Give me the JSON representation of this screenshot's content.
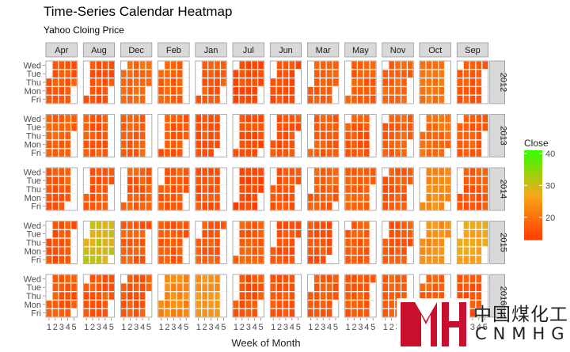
{
  "header": {
    "title": "Time-Series Calendar Heatmap",
    "subtitle": "Yahoo Cloing Price"
  },
  "watermark": {
    "cn": "中国煤化工",
    "en": "CNMHG"
  },
  "colors": {
    "low": "#ff3c00",
    "mid": "#f7a81b",
    "high": "#33ff00",
    "strip_fill": "#d9d9d9",
    "grid": "#e6e6e6",
    "panel_border": "#7f7f7f"
  },
  "chart_data": {
    "type": "heatmap",
    "title": "Time-Series Calendar Heatmap",
    "subtitle": "Yahoo Cloing Price",
    "xlabel": "Week of Month",
    "ylabel": "",
    "months": [
      "Apr",
      "Aug",
      "Dec",
      "Feb",
      "Jan",
      "Jul",
      "Jun",
      "Mar",
      "May",
      "Nov",
      "Oct",
      "Sep"
    ],
    "years": [
      "2012",
      "2013",
      "2014",
      "2015",
      "2016"
    ],
    "week_ticks": [
      "1",
      "2",
      "3",
      "4",
      "5"
    ],
    "weekday_ticks": [
      "Wed",
      "Tue",
      "Thu",
      "Mon",
      "Fri"
    ],
    "legend": {
      "title": "Close",
      "ticks": [
        20,
        30,
        40
      ],
      "range": [
        13,
        41
      ],
      "position": "right"
    },
    "grid": true,
    "base_close_by_year_month": {
      "2012": [
        16.5,
        15.8,
        18.8,
        17.5,
        16.2,
        15.2,
        15.5,
        16.8,
        17.2,
        18.0,
        20.5,
        16.6
      ],
      "2013": [
        17.5,
        16.5,
        17.5,
        16.5,
        16.0,
        15.0,
        16.2,
        17.0,
        16.5,
        17.8,
        19.0,
        17.0
      ],
      "2014": [
        16.5,
        16.0,
        17.0,
        16.8,
        16.0,
        14.0,
        16.0,
        17.2,
        17.8,
        16.5,
        23.0,
        16.5
      ],
      "2015": [
        15.5,
        30.0,
        17.0,
        16.5,
        16.8,
        17.0,
        15.5,
        16.0,
        16.5,
        16.8,
        23.5,
        27.0
      ],
      "2016": [
        16.5,
        16.5,
        16.5,
        23.0,
        24.5,
        16.0,
        16.5,
        16.5,
        16.5,
        17.0,
        17.5,
        16.5
      ]
    }
  }
}
